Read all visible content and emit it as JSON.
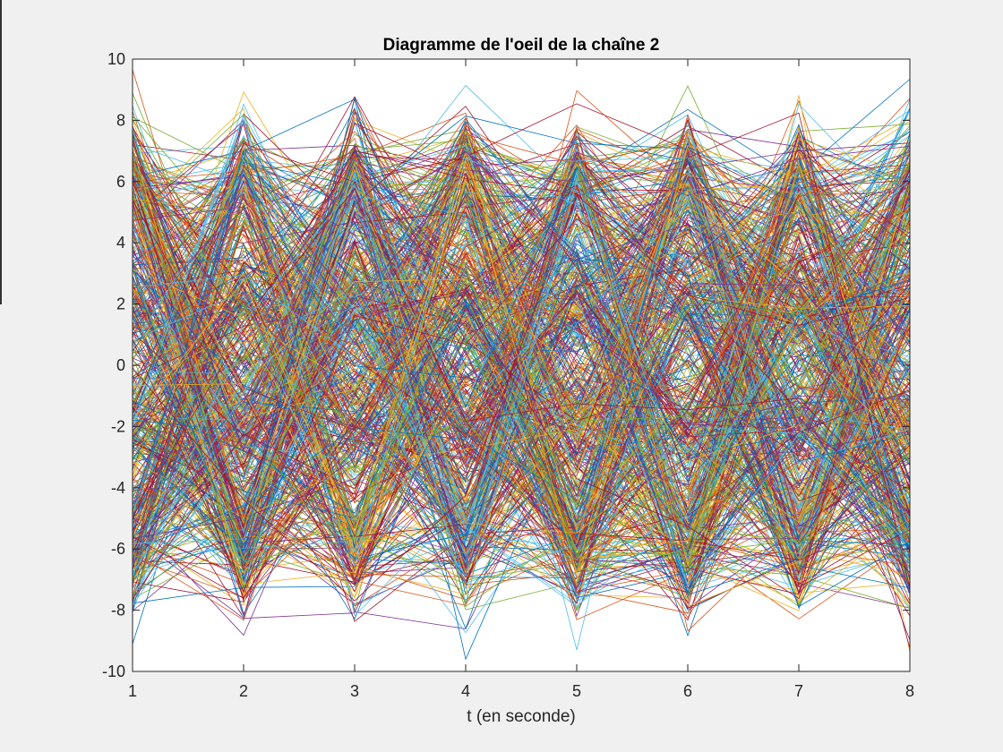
{
  "window": {
    "background": "#f0f0f0"
  },
  "chart_data": {
    "type": "line",
    "title": "Diagramme de l'oeil de la chaîne 2",
    "xlabel": "t (en seconde)",
    "ylabel": "",
    "xlim": [
      1,
      8
    ],
    "ylim": [
      -10,
      10
    ],
    "xticks": [
      1,
      2,
      3,
      4,
      5,
      6,
      7,
      8
    ],
    "yticks": [
      -10,
      -8,
      -6,
      -4,
      -2,
      0,
      2,
      4,
      6,
      8,
      10
    ],
    "grid": false,
    "legend": "none",
    "symbol_levels": [
      -6,
      -2,
      2,
      6
    ],
    "noise_amplitude": 1.5,
    "series_color_cycle": [
      "#0072BD",
      "#D95319",
      "#EDB120",
      "#7E2F8E",
      "#77AC30",
      "#4DBEEE",
      "#A2142F"
    ],
    "series_count": 700,
    "points_per_series": 8
  }
}
